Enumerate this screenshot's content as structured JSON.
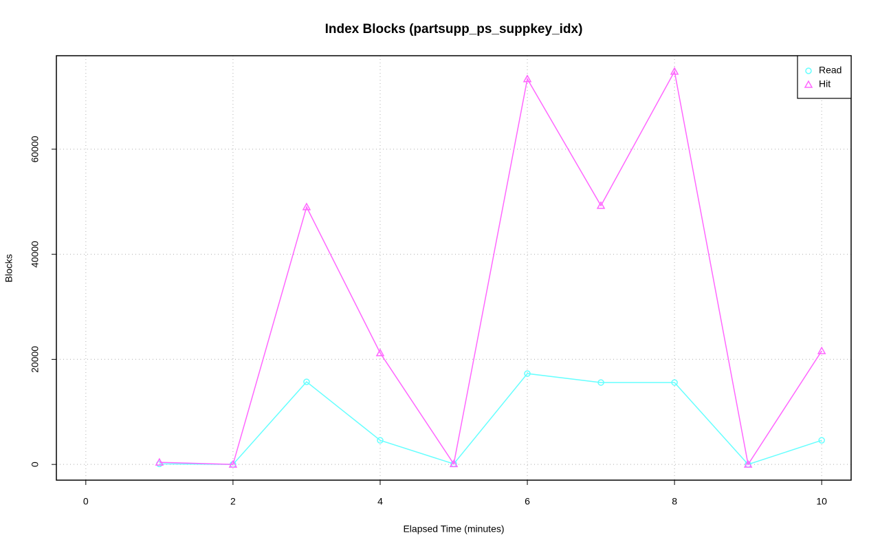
{
  "chart_data": {
    "type": "line",
    "title": "Index Blocks (partsupp_ps_suppkey_idx)",
    "xlabel": "Elapsed Time (minutes)",
    "ylabel": "Blocks",
    "x": [
      1,
      2,
      3,
      4,
      5,
      6,
      7,
      8,
      9,
      10
    ],
    "series": [
      {
        "name": "Read",
        "color": "#66ffff",
        "marker": "circle",
        "values": [
          100,
          0,
          15720,
          4590,
          100,
          17290,
          15590,
          15590,
          0,
          4590
        ]
      },
      {
        "name": "Hit",
        "color": "#ff66ff",
        "marker": "triangle",
        "values": [
          400,
          0,
          49000,
          21220,
          100,
          73370,
          49260,
          74800,
          0,
          21600
        ]
      }
    ],
    "xlim": [
      -0.4,
      10.4
    ],
    "xticks": [
      0,
      2,
      4,
      6,
      8,
      10
    ],
    "ylim": [
      -2992,
      77792
    ],
    "yticks": [
      0,
      20000,
      40000,
      60000
    ],
    "grid": true,
    "legend": "topright"
  }
}
